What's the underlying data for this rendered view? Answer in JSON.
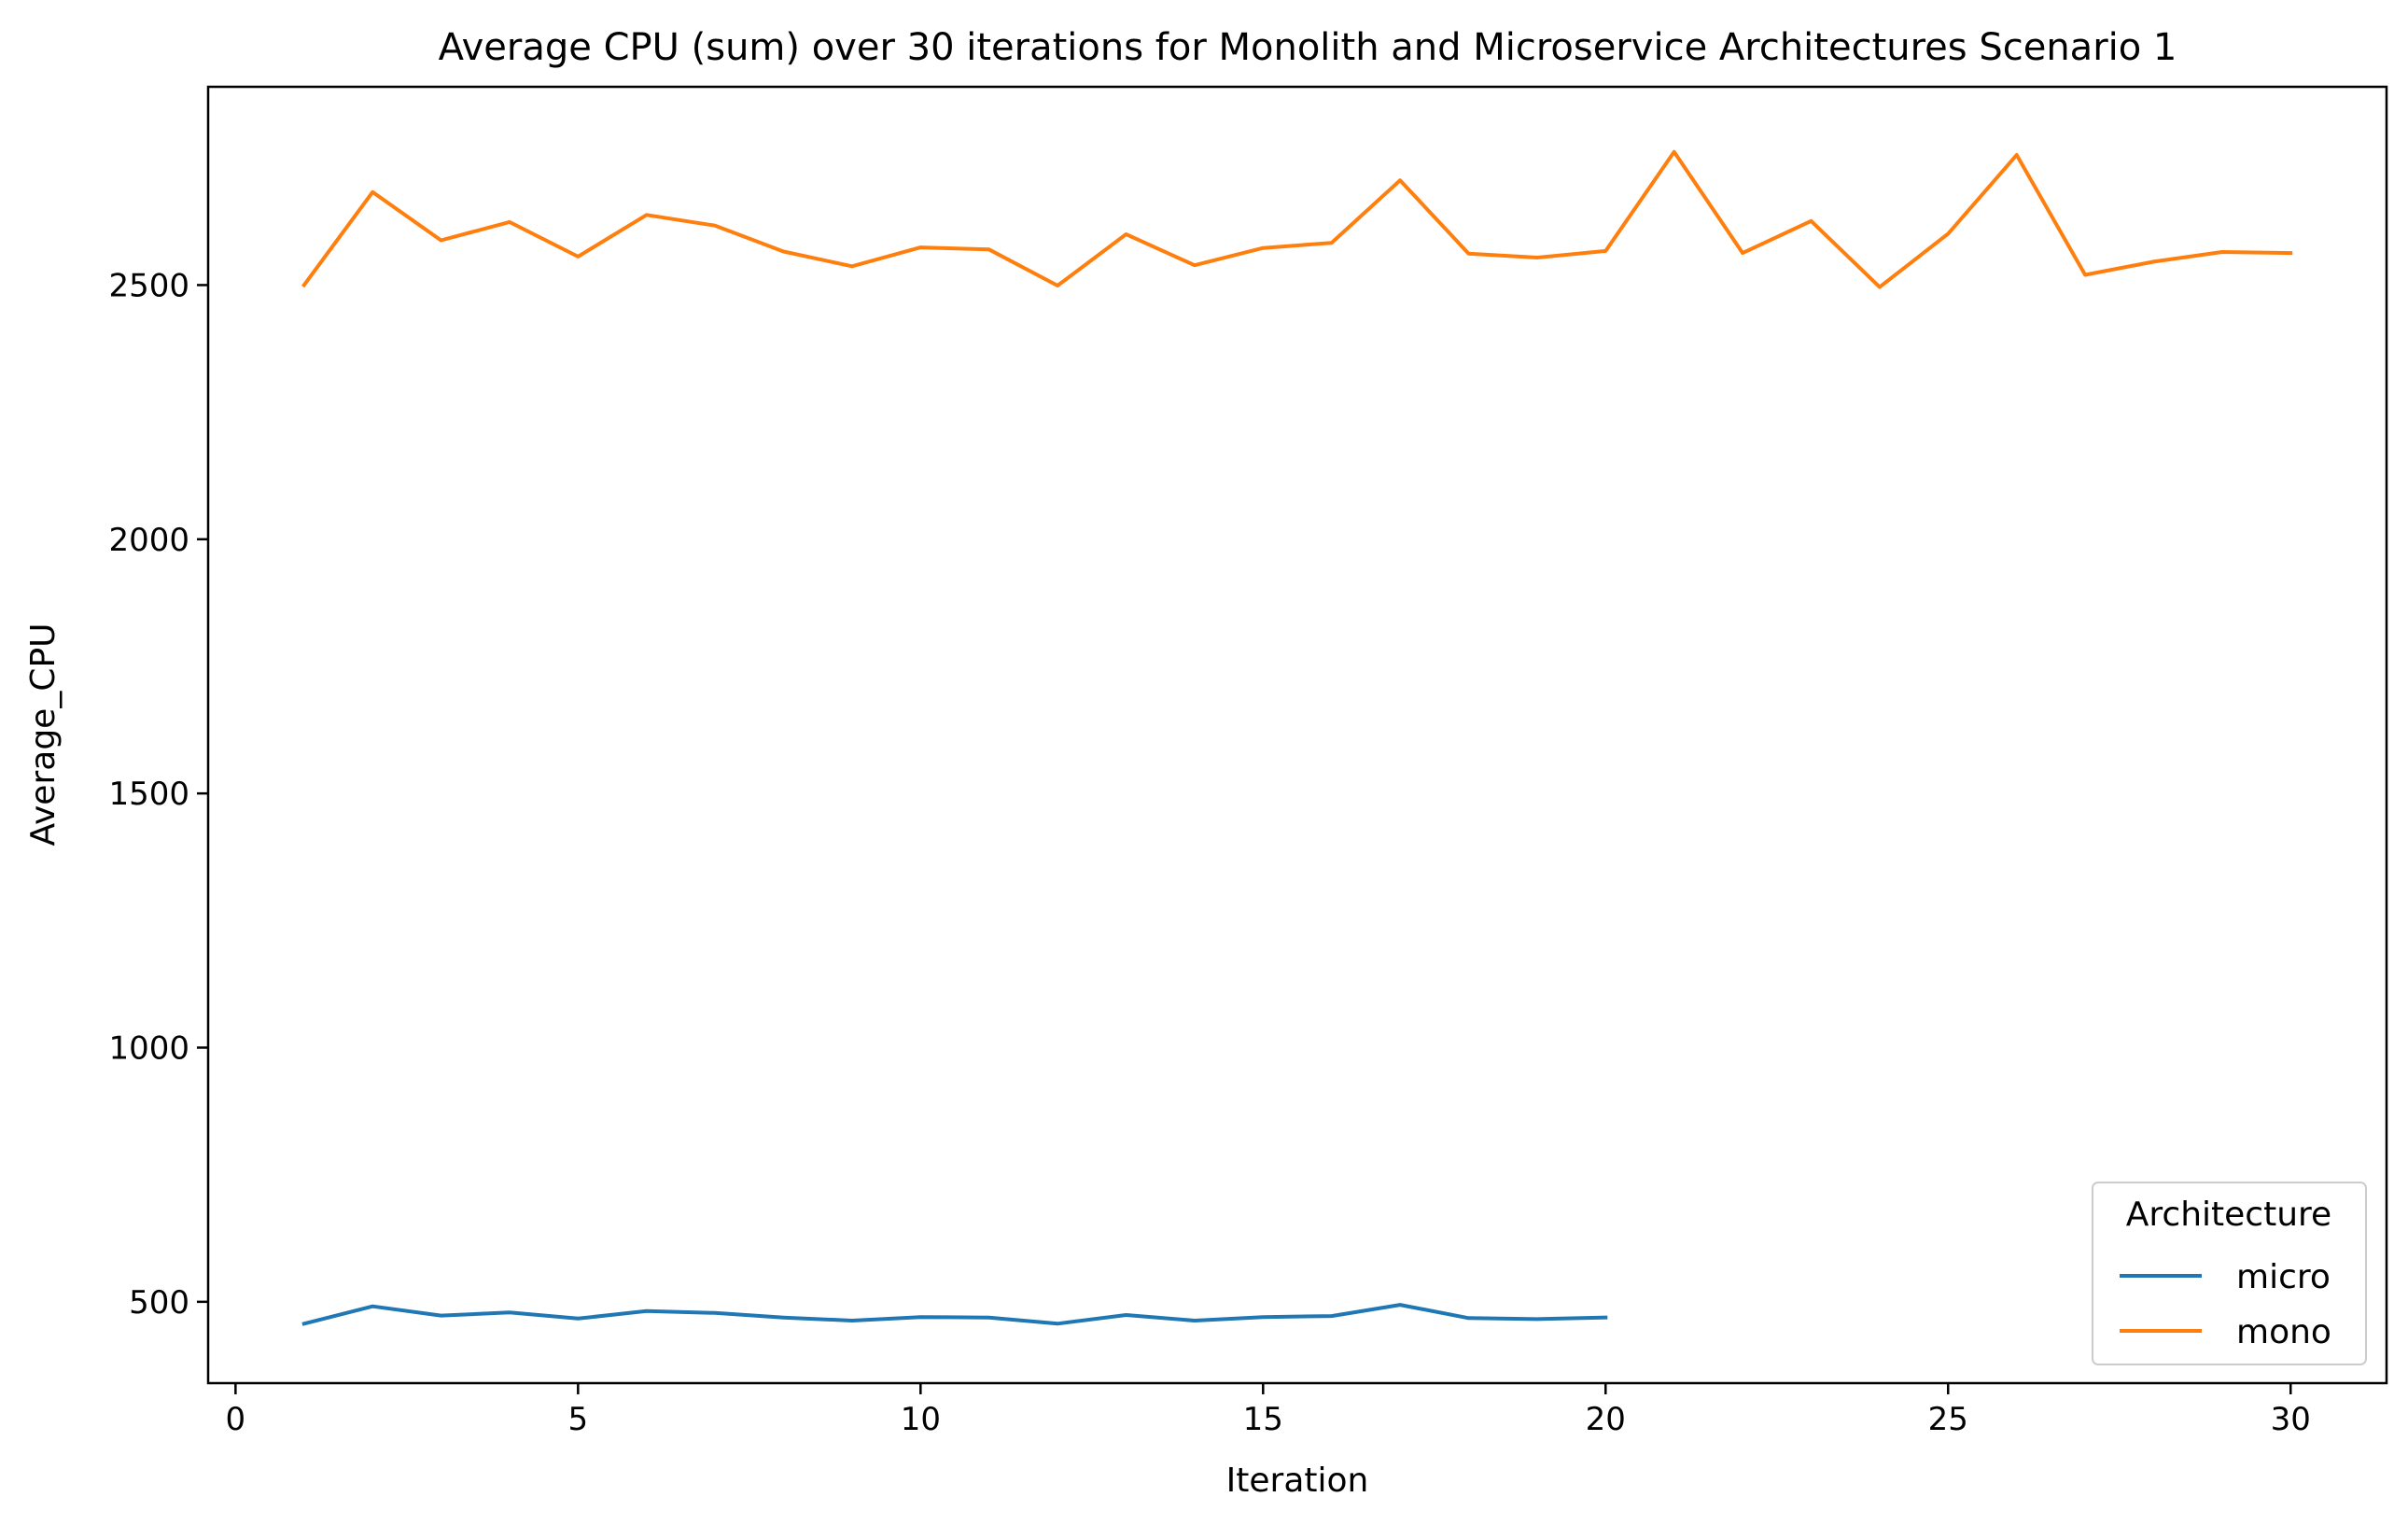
{
  "chart_data": {
    "type": "line",
    "title": "Average CPU (sum) over 30 iterations for Monolith and Microservice Architectures Scenario 1",
    "xlabel": "Iteration",
    "ylabel": "Average_CPU",
    "xlim": [
      -0.4,
      31.4
    ],
    "ylim": [
      340,
      2890
    ],
    "xticks": [
      0,
      5,
      10,
      15,
      20,
      25,
      30
    ],
    "xtick_labels": [
      "0",
      "5",
      "10",
      "15",
      "20",
      "25",
      "30"
    ],
    "yticks": [
      500,
      1000,
      1500,
      2000,
      2500
    ],
    "ytick_labels": [
      "500",
      "1000",
      "1500",
      "2000",
      "2500"
    ],
    "grid": false,
    "legend": {
      "title": "Architecture",
      "position": "lower right"
    },
    "series": [
      {
        "name": "micro",
        "color": "#1f77b4",
        "x": [
          1,
          2,
          3,
          4,
          5,
          6,
          7,
          8,
          9,
          10,
          11,
          12,
          13,
          14,
          15,
          16,
          17,
          18,
          19,
          20
        ],
        "y": [
          457,
          491,
          473,
          479,
          467,
          482,
          478,
          469,
          463,
          470,
          469,
          457,
          474,
          463,
          470,
          472,
          494,
          468,
          466,
          469
        ]
      },
      {
        "name": "mono",
        "color": "#ff7f0e",
        "x": [
          1,
          2,
          3,
          4,
          5,
          6,
          7,
          8,
          9,
          10,
          11,
          12,
          13,
          14,
          15,
          16,
          17,
          18,
          19,
          20,
          21,
          22,
          23,
          24,
          25,
          26,
          27,
          28,
          29,
          30
        ],
        "y": [
          2500,
          2683,
          2588,
          2624,
          2556,
          2638,
          2617,
          2566,
          2537,
          2574,
          2570,
          2499,
          2600,
          2539,
          2573,
          2583,
          2706,
          2562,
          2554,
          2567,
          2762,
          2563,
          2626,
          2496,
          2601,
          2756,
          2520,
          2546,
          2565,
          2563
        ]
      }
    ]
  }
}
